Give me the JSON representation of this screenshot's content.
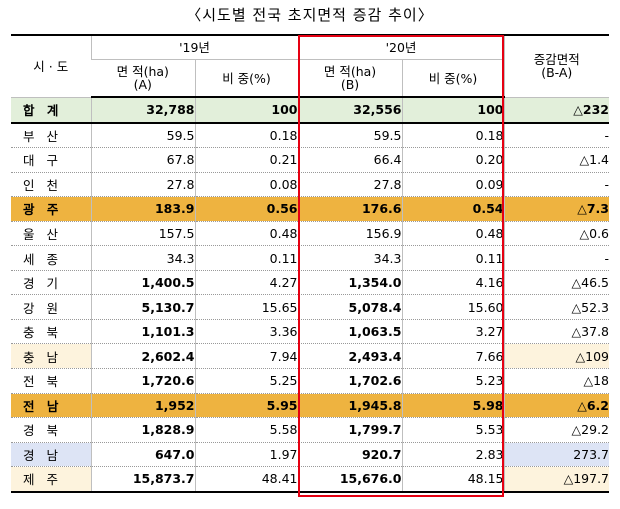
{
  "title": "〈시도별 전국 초지면적 증감 추이〉",
  "headers": {
    "region": "시 · 도",
    "year1": "'19년",
    "year2": "'20년",
    "change_line1": "증감면적",
    "change_line2": "(B-A)",
    "area_a_line1": "면  적(ha)",
    "area_a_line2": "(A)",
    "ratio_a": "비  중(%)",
    "area_b_line1": "면  적(ha)",
    "area_b_line2": "(B)",
    "ratio_b": "비  중(%)"
  },
  "rows": [
    {
      "name": "합 계",
      "area19": "32,788",
      "ratio19": "100",
      "area20": "32,556",
      "ratio20": "100",
      "change": "△232"
    },
    {
      "name": "부 산",
      "area19": "59.5",
      "ratio19": "0.18",
      "area20": "59.5",
      "ratio20": "0.18",
      "change": "-"
    },
    {
      "name": "대 구",
      "area19": "67.8",
      "ratio19": "0.21",
      "area20": "66.4",
      "ratio20": "0.20",
      "change": "△1.4"
    },
    {
      "name": "인 천",
      "area19": "27.8",
      "ratio19": "0.08",
      "area20": "27.8",
      "ratio20": "0.09",
      "change": "-"
    },
    {
      "name": "광 주",
      "area19": "183.9",
      "ratio19": "0.56",
      "area20": "176.6",
      "ratio20": "0.54",
      "change": "△7.3"
    },
    {
      "name": "울 산",
      "area19": "157.5",
      "ratio19": "0.48",
      "area20": "156.9",
      "ratio20": "0.48",
      "change": "△0.6"
    },
    {
      "name": "세 종",
      "area19": "34.3",
      "ratio19": "0.11",
      "area20": "34.3",
      "ratio20": "0.11",
      "change": "-"
    },
    {
      "name": "경 기",
      "area19": "1,400.5",
      "ratio19": "4.27",
      "area20": "1,354.0",
      "ratio20": "4.16",
      "change": "△46.5"
    },
    {
      "name": "강 원",
      "area19": "5,130.7",
      "ratio19": "15.65",
      "area20": "5,078.4",
      "ratio20": "15.60",
      "change": "△52.3"
    },
    {
      "name": "충 북",
      "area19": "1,101.3",
      "ratio19": "3.36",
      "area20": "1,063.5",
      "ratio20": "3.27",
      "change": "△37.8"
    },
    {
      "name": "충 남",
      "area19": "2,602.4",
      "ratio19": "7.94",
      "area20": "2,493.4",
      "ratio20": "7.66",
      "change": "△109"
    },
    {
      "name": "전 북",
      "area19": "1,720.6",
      "ratio19": "5.25",
      "area20": "1,702.6",
      "ratio20": "5.23",
      "change": "△18"
    },
    {
      "name": "전 남",
      "area19": "1,952",
      "ratio19": "5.95",
      "area20": "1,945.8",
      "ratio20": "5.98",
      "change": "△6.2"
    },
    {
      "name": "경 북",
      "area19": "1,828.9",
      "ratio19": "5.58",
      "area20": "1,799.7",
      "ratio20": "5.53",
      "change": "△29.2"
    },
    {
      "name": "경 남",
      "area19": "647.0",
      "ratio19": "1.97",
      "area20": "920.7",
      "ratio20": "2.83",
      "change": "273.7"
    },
    {
      "name": "제 주",
      "area19": "15,873.7",
      "ratio19": "48.41",
      "area20": "15,676.0",
      "ratio20": "48.15",
      "change": "△197.7"
    }
  ],
  "colors": {
    "total_row": "#e2efda",
    "highlight_row": "#eeb340",
    "light_cell": "#fdf3dd",
    "blue_cell": "#dde4f5",
    "red_box": "#e60012"
  }
}
